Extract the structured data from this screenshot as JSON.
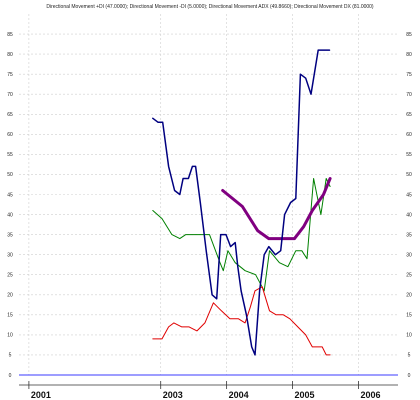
{
  "chart_data": {
    "type": "line",
    "title": "Directional Movement +DI (47.0000); Directional Movement -DI (5.0000); Directional Movement ADX (49.8660); Directional Movement DX (81.0000)",
    "xlabel": "",
    "ylabel": "",
    "x_ticks": [
      "2001",
      "2003",
      "2004",
      "2005",
      "2006"
    ],
    "y_ticks": [
      0,
      5,
      10,
      15,
      20,
      25,
      30,
      35,
      40,
      45,
      50,
      55,
      60,
      65,
      70,
      75,
      80,
      85
    ],
    "ylim": [
      0,
      90
    ],
    "xlim": [
      2000.85,
      2006.6
    ],
    "grid": true,
    "legend": "none",
    "series": [
      {
        "name": "+DI",
        "color": "#008000",
        "line_width": 1,
        "x": [
          2002.88,
          2003.02,
          2003.17,
          2003.29,
          2003.38,
          2003.56,
          2003.74,
          2003.9,
          2003.95,
          2004.02,
          2004.13,
          2004.28,
          2004.44,
          2004.57,
          2004.65,
          2004.8,
          2004.93,
          2005.05,
          2005.14,
          2005.22,
          2005.32,
          2005.43,
          2005.51,
          2005.57
        ],
        "y": [
          41,
          39,
          35,
          34,
          35,
          35,
          35,
          28,
          26,
          31,
          28,
          26,
          25,
          21,
          31,
          28,
          27,
          31,
          31,
          29,
          49,
          40,
          49,
          47
        ]
      },
      {
        "name": "-DI",
        "color": "#e00000",
        "line_width": 1,
        "x": [
          2002.88,
          2003.02,
          2003.12,
          2003.2,
          2003.32,
          2003.43,
          2003.55,
          2003.67,
          2003.8,
          2003.92,
          2004.05,
          2004.18,
          2004.28,
          2004.36,
          2004.43,
          2004.54,
          2004.65,
          2004.75,
          2004.86,
          2004.96,
          2005.08,
          2005.2,
          2005.3,
          2005.38,
          2005.45,
          2005.51,
          2005.57
        ],
        "y": [
          9,
          9,
          12,
          13,
          12,
          12,
          11,
          13,
          18,
          16,
          14,
          14,
          13,
          17,
          21,
          22,
          16,
          15,
          15,
          14,
          12,
          10,
          7,
          7,
          7,
          5,
          5
        ]
      },
      {
        "name": "ADX",
        "color": "#800080",
        "line_width": 3,
        "x": [
          2003.94,
          2004.24,
          2004.47,
          2004.64,
          2004.75,
          2004.84,
          2004.94,
          2005.03,
          2005.17,
          2005.3,
          2005.47,
          2005.57
        ],
        "y": [
          46,
          42,
          36,
          34,
          34,
          34,
          34,
          34,
          37,
          41,
          45,
          49
        ]
      },
      {
        "name": "DX",
        "color": "#000080",
        "line_width": 1.5,
        "x": [
          2002.88,
          2002.96,
          2003.03,
          2003.12,
          2003.21,
          2003.29,
          2003.34,
          2003.42,
          2003.48,
          2003.53,
          2003.6,
          2003.69,
          2003.78,
          2003.85,
          2003.91,
          2003.99,
          2004.06,
          2004.13,
          2004.17,
          2004.22,
          2004.3,
          2004.38,
          2004.43,
          2004.5,
          2004.57,
          2004.64,
          2004.74,
          2004.82,
          2004.88,
          2004.97,
          2005.05,
          2005.12,
          2005.2,
          2005.28,
          2005.39,
          2005.48,
          2005.56
        ],
        "y": [
          64,
          63,
          63,
          52,
          46,
          45,
          49,
          49,
          52,
          52,
          43,
          31,
          20,
          19,
          35,
          35,
          32,
          33,
          27,
          21,
          15,
          7,
          5,
          21,
          30,
          32,
          30,
          31,
          40,
          43,
          44,
          75,
          74,
          70,
          81,
          81,
          81
        ]
      }
    ]
  }
}
